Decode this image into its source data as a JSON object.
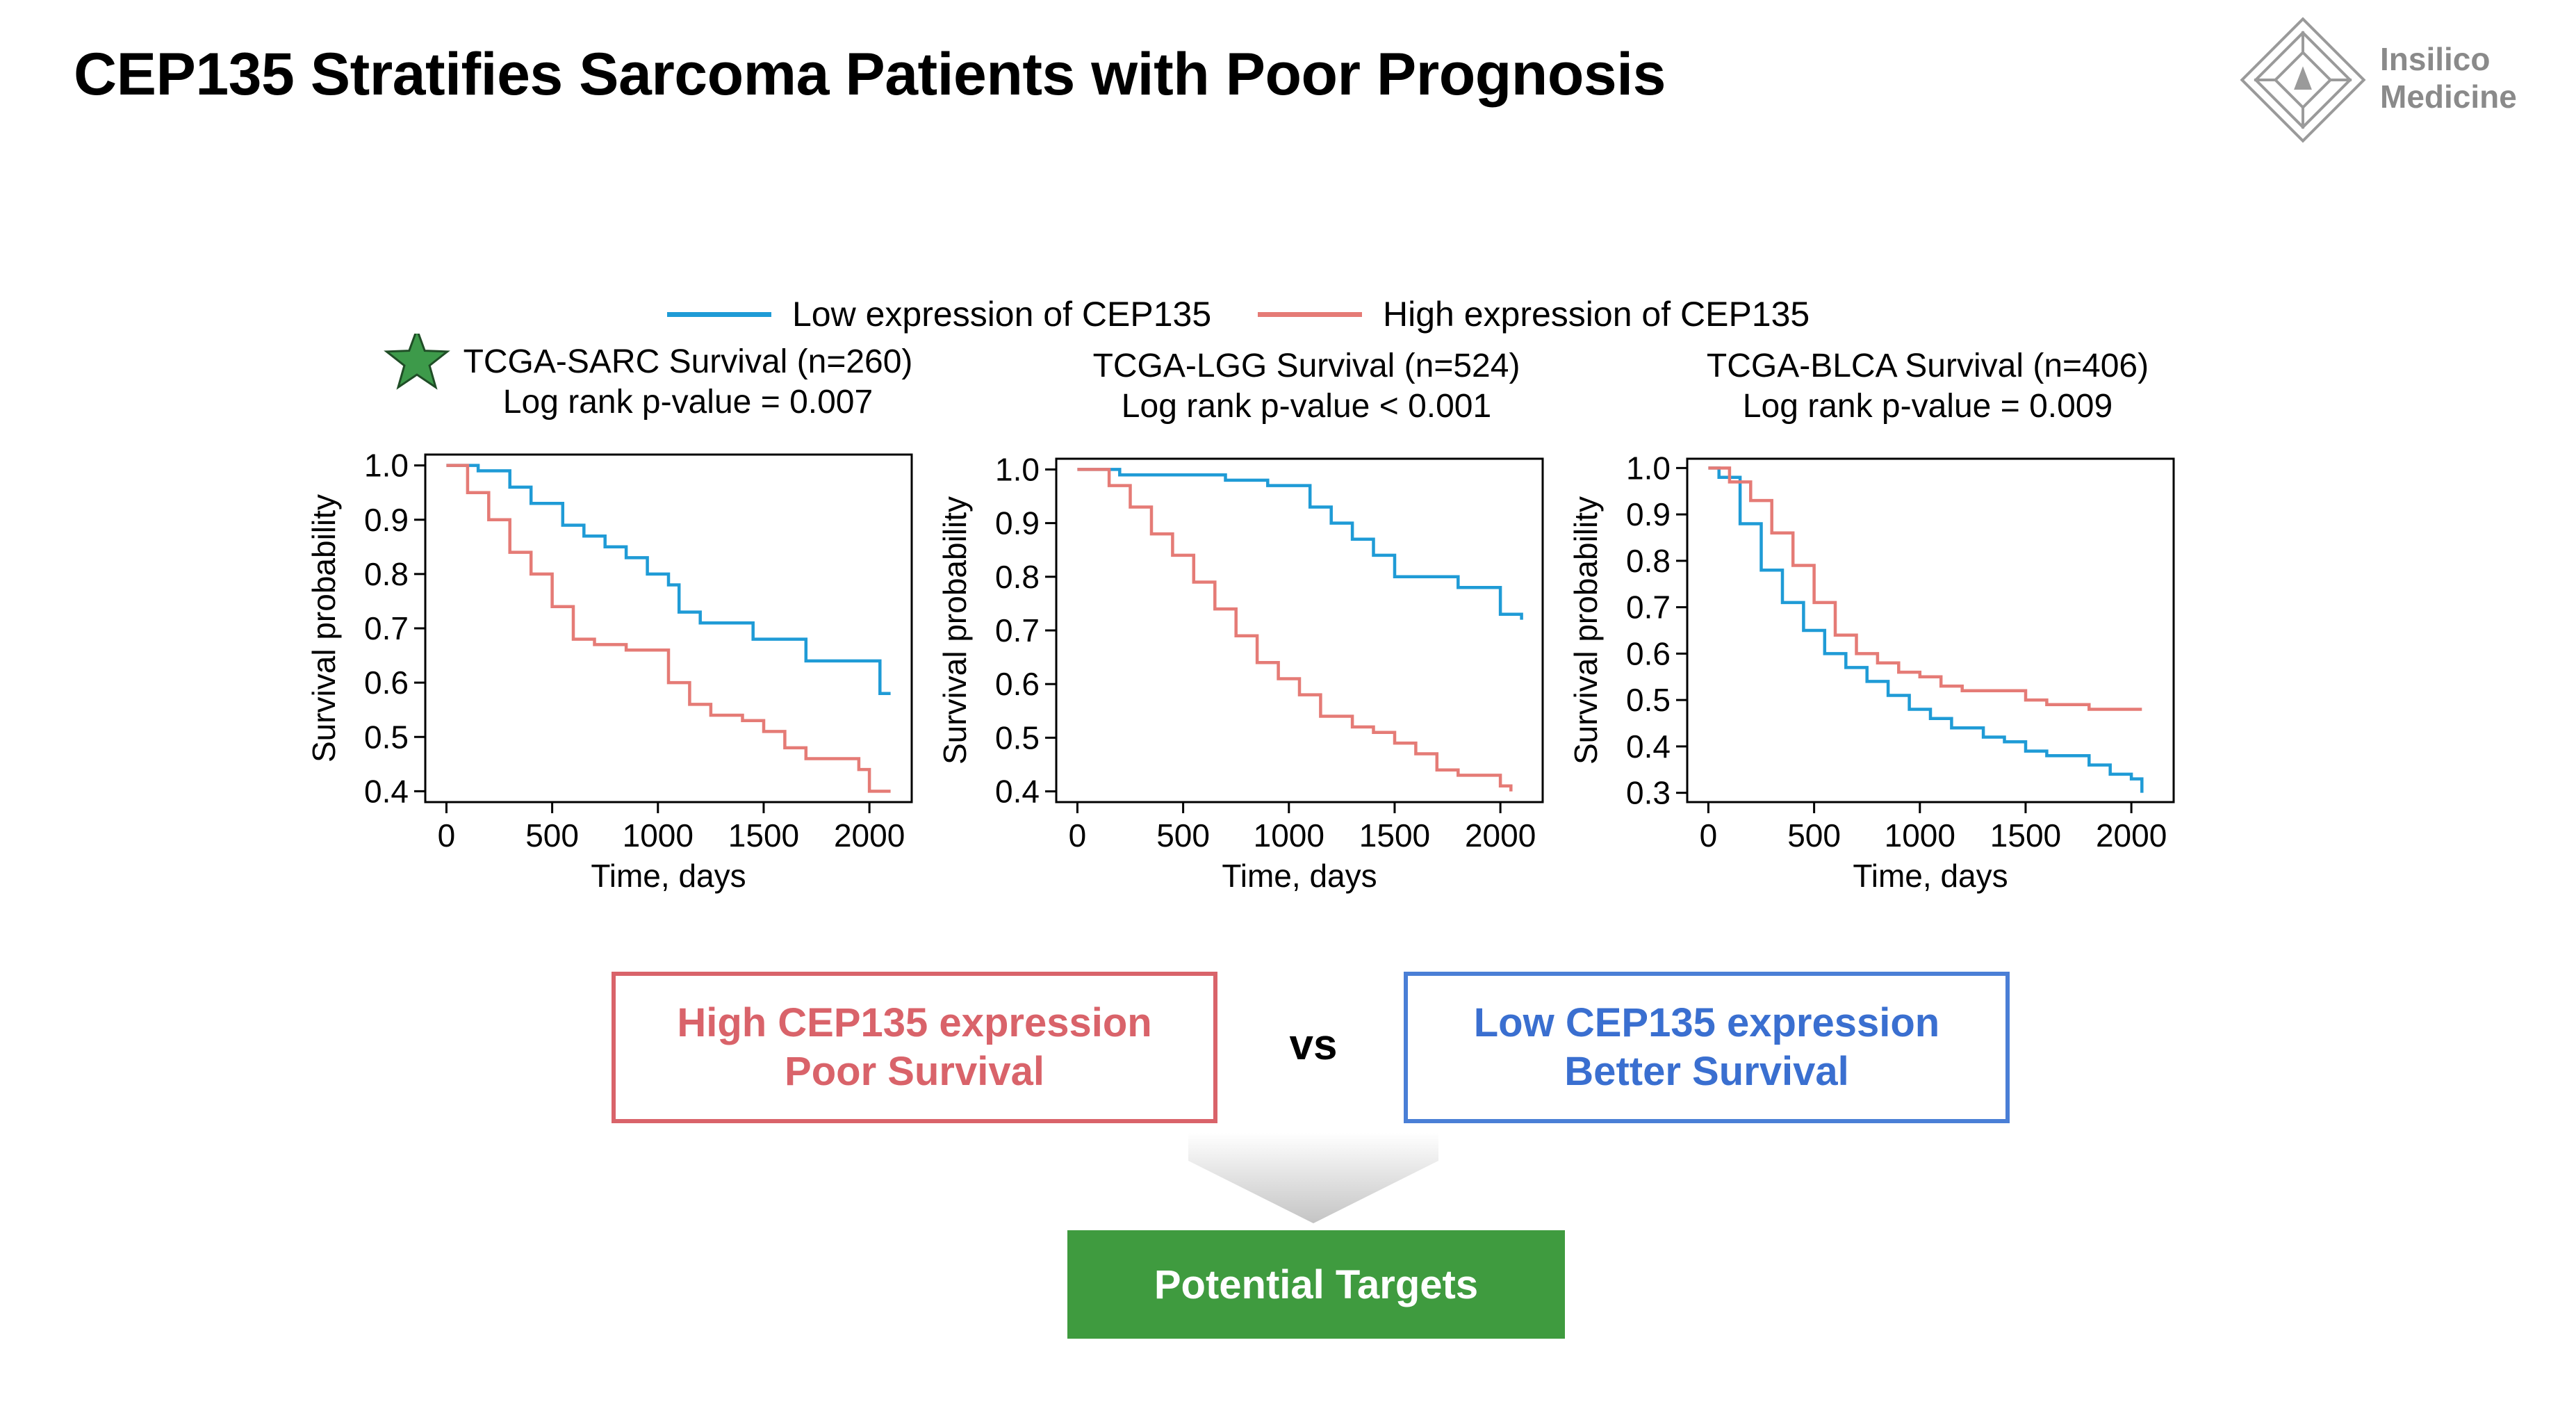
{
  "slide": {
    "title": "CEP135 Stratifies Sarcoma Patients with Poor Prognosis",
    "logo": {
      "line1": "Insilico",
      "line2": "Medicine",
      "icon": "insilico-diamond-logo"
    }
  },
  "legend": {
    "low_label": "Low expression of CEP135",
    "high_label": "High expression of CEP135",
    "low_color": "#1f9bd6",
    "high_color": "#e57b76"
  },
  "chart_data": [
    {
      "type": "line",
      "title": "TCGA-SARC Survival (n=260)",
      "subtitle": "Log rank p-value = 0.007",
      "highlight": "star-icon",
      "xlabel": "Time, days",
      "ylabel": "Survival probability",
      "xlim": [
        -100,
        2200
      ],
      "ylim": [
        0.38,
        1.02
      ],
      "xticks": [
        0,
        500,
        1000,
        1500,
        2000
      ],
      "xtick_labels": [
        "0",
        "500",
        "1000",
        "1500",
        "2000"
      ],
      "yticks": [
        0.4,
        0.5,
        0.6,
        0.7,
        0.8,
        0.9,
        1.0
      ],
      "ytick_labels": [
        "0.4",
        "0.5",
        "0.6",
        "0.7",
        "0.8",
        "0.9",
        "1.0"
      ],
      "series": [
        {
          "key": "low",
          "x": [
            0,
            150,
            300,
            400,
            550,
            650,
            750,
            850,
            950,
            1050,
            1100,
            1200,
            1350,
            1450,
            1700,
            1800,
            2000,
            2050,
            2100
          ],
          "y": [
            1.0,
            0.99,
            0.96,
            0.93,
            0.89,
            0.87,
            0.85,
            0.83,
            0.8,
            0.78,
            0.73,
            0.71,
            0.71,
            0.68,
            0.64,
            0.64,
            0.64,
            0.58,
            0.58
          ]
        },
        {
          "key": "high",
          "x": [
            0,
            100,
            200,
            300,
            400,
            500,
            600,
            700,
            850,
            1050,
            1150,
            1250,
            1400,
            1500,
            1600,
            1700,
            1900,
            1950,
            2000,
            2100
          ],
          "y": [
            1.0,
            0.95,
            0.9,
            0.84,
            0.8,
            0.74,
            0.68,
            0.67,
            0.66,
            0.6,
            0.56,
            0.54,
            0.53,
            0.51,
            0.48,
            0.46,
            0.46,
            0.44,
            0.4,
            0.4
          ]
        }
      ]
    },
    {
      "type": "line",
      "title": "TCGA-LGG Survival (n=524)",
      "subtitle": "Log rank p-value < 0.001",
      "xlabel": "Time, days",
      "ylabel": "Survival probability",
      "xlim": [
        -100,
        2200
      ],
      "ylim": [
        0.38,
        1.02
      ],
      "xticks": [
        0,
        500,
        1000,
        1500,
        2000
      ],
      "xtick_labels": [
        "0",
        "500",
        "1000",
        "1500",
        "2000"
      ],
      "yticks": [
        0.4,
        0.5,
        0.6,
        0.7,
        0.8,
        0.9,
        1.0
      ],
      "ytick_labels": [
        "0.4",
        "0.5",
        "0.6",
        "0.7",
        "0.8",
        "0.9",
        "1.0"
      ],
      "series": [
        {
          "key": "low",
          "x": [
            0,
            200,
            500,
            700,
            900,
            1100,
            1200,
            1300,
            1400,
            1500,
            1700,
            1800,
            1900,
            2000,
            2100
          ],
          "y": [
            1.0,
            0.99,
            0.99,
            0.98,
            0.97,
            0.93,
            0.9,
            0.87,
            0.84,
            0.8,
            0.8,
            0.78,
            0.78,
            0.73,
            0.72
          ]
        },
        {
          "key": "high",
          "x": [
            0,
            150,
            250,
            350,
            450,
            550,
            650,
            750,
            850,
            950,
            1050,
            1150,
            1300,
            1400,
            1500,
            1600,
            1700,
            1800,
            1900,
            2000,
            2050
          ],
          "y": [
            1.0,
            0.97,
            0.93,
            0.88,
            0.84,
            0.79,
            0.74,
            0.69,
            0.64,
            0.61,
            0.58,
            0.54,
            0.52,
            0.51,
            0.49,
            0.47,
            0.44,
            0.43,
            0.43,
            0.41,
            0.4
          ]
        }
      ]
    },
    {
      "type": "line",
      "title": "TCGA-BLCA Survival (n=406)",
      "subtitle": "Log rank p-value = 0.009",
      "xlabel": "Time, days",
      "ylabel": "Survival probability",
      "xlim": [
        -100,
        2200
      ],
      "ylim": [
        0.28,
        1.02
      ],
      "xticks": [
        0,
        500,
        1000,
        1500,
        2000
      ],
      "xtick_labels": [
        "0",
        "500",
        "1000",
        "1500",
        "2000"
      ],
      "yticks": [
        0.3,
        0.4,
        0.5,
        0.6,
        0.7,
        0.8,
        0.9,
        1.0
      ],
      "ytick_labels": [
        "0.3",
        "0.4",
        "0.5",
        "0.6",
        "0.7",
        "0.8",
        "0.9",
        "1.0"
      ],
      "series": [
        {
          "key": "low",
          "x": [
            0,
            50,
            150,
            250,
            350,
            450,
            550,
            650,
            750,
            850,
            950,
            1050,
            1150,
            1300,
            1400,
            1500,
            1600,
            1700,
            1800,
            1900,
            2000,
            2050
          ],
          "y": [
            1.0,
            0.98,
            0.88,
            0.78,
            0.71,
            0.65,
            0.6,
            0.57,
            0.54,
            0.51,
            0.48,
            0.46,
            0.44,
            0.42,
            0.41,
            0.39,
            0.38,
            0.38,
            0.36,
            0.34,
            0.33,
            0.3
          ]
        },
        {
          "key": "high",
          "x": [
            0,
            100,
            200,
            300,
            400,
            500,
            600,
            700,
            800,
            900,
            1000,
            1100,
            1200,
            1300,
            1400,
            1500,
            1600,
            1800,
            2000,
            2050
          ],
          "y": [
            1.0,
            0.97,
            0.93,
            0.86,
            0.79,
            0.71,
            0.64,
            0.6,
            0.58,
            0.56,
            0.55,
            0.53,
            0.52,
            0.52,
            0.52,
            0.5,
            0.49,
            0.48,
            0.48,
            0.48
          ]
        }
      ]
    }
  ],
  "comparison": {
    "high_box": {
      "line1": "High CEP135 expression",
      "line2": "Poor Survival",
      "color": "#d9636a"
    },
    "vs": "vs",
    "low_box": {
      "line1": "Low CEP135 expression",
      "line2": "Better Survival",
      "color": "#3a6fd0"
    }
  },
  "result": {
    "label": "Potential Targets",
    "color": "#3f9b3f"
  }
}
